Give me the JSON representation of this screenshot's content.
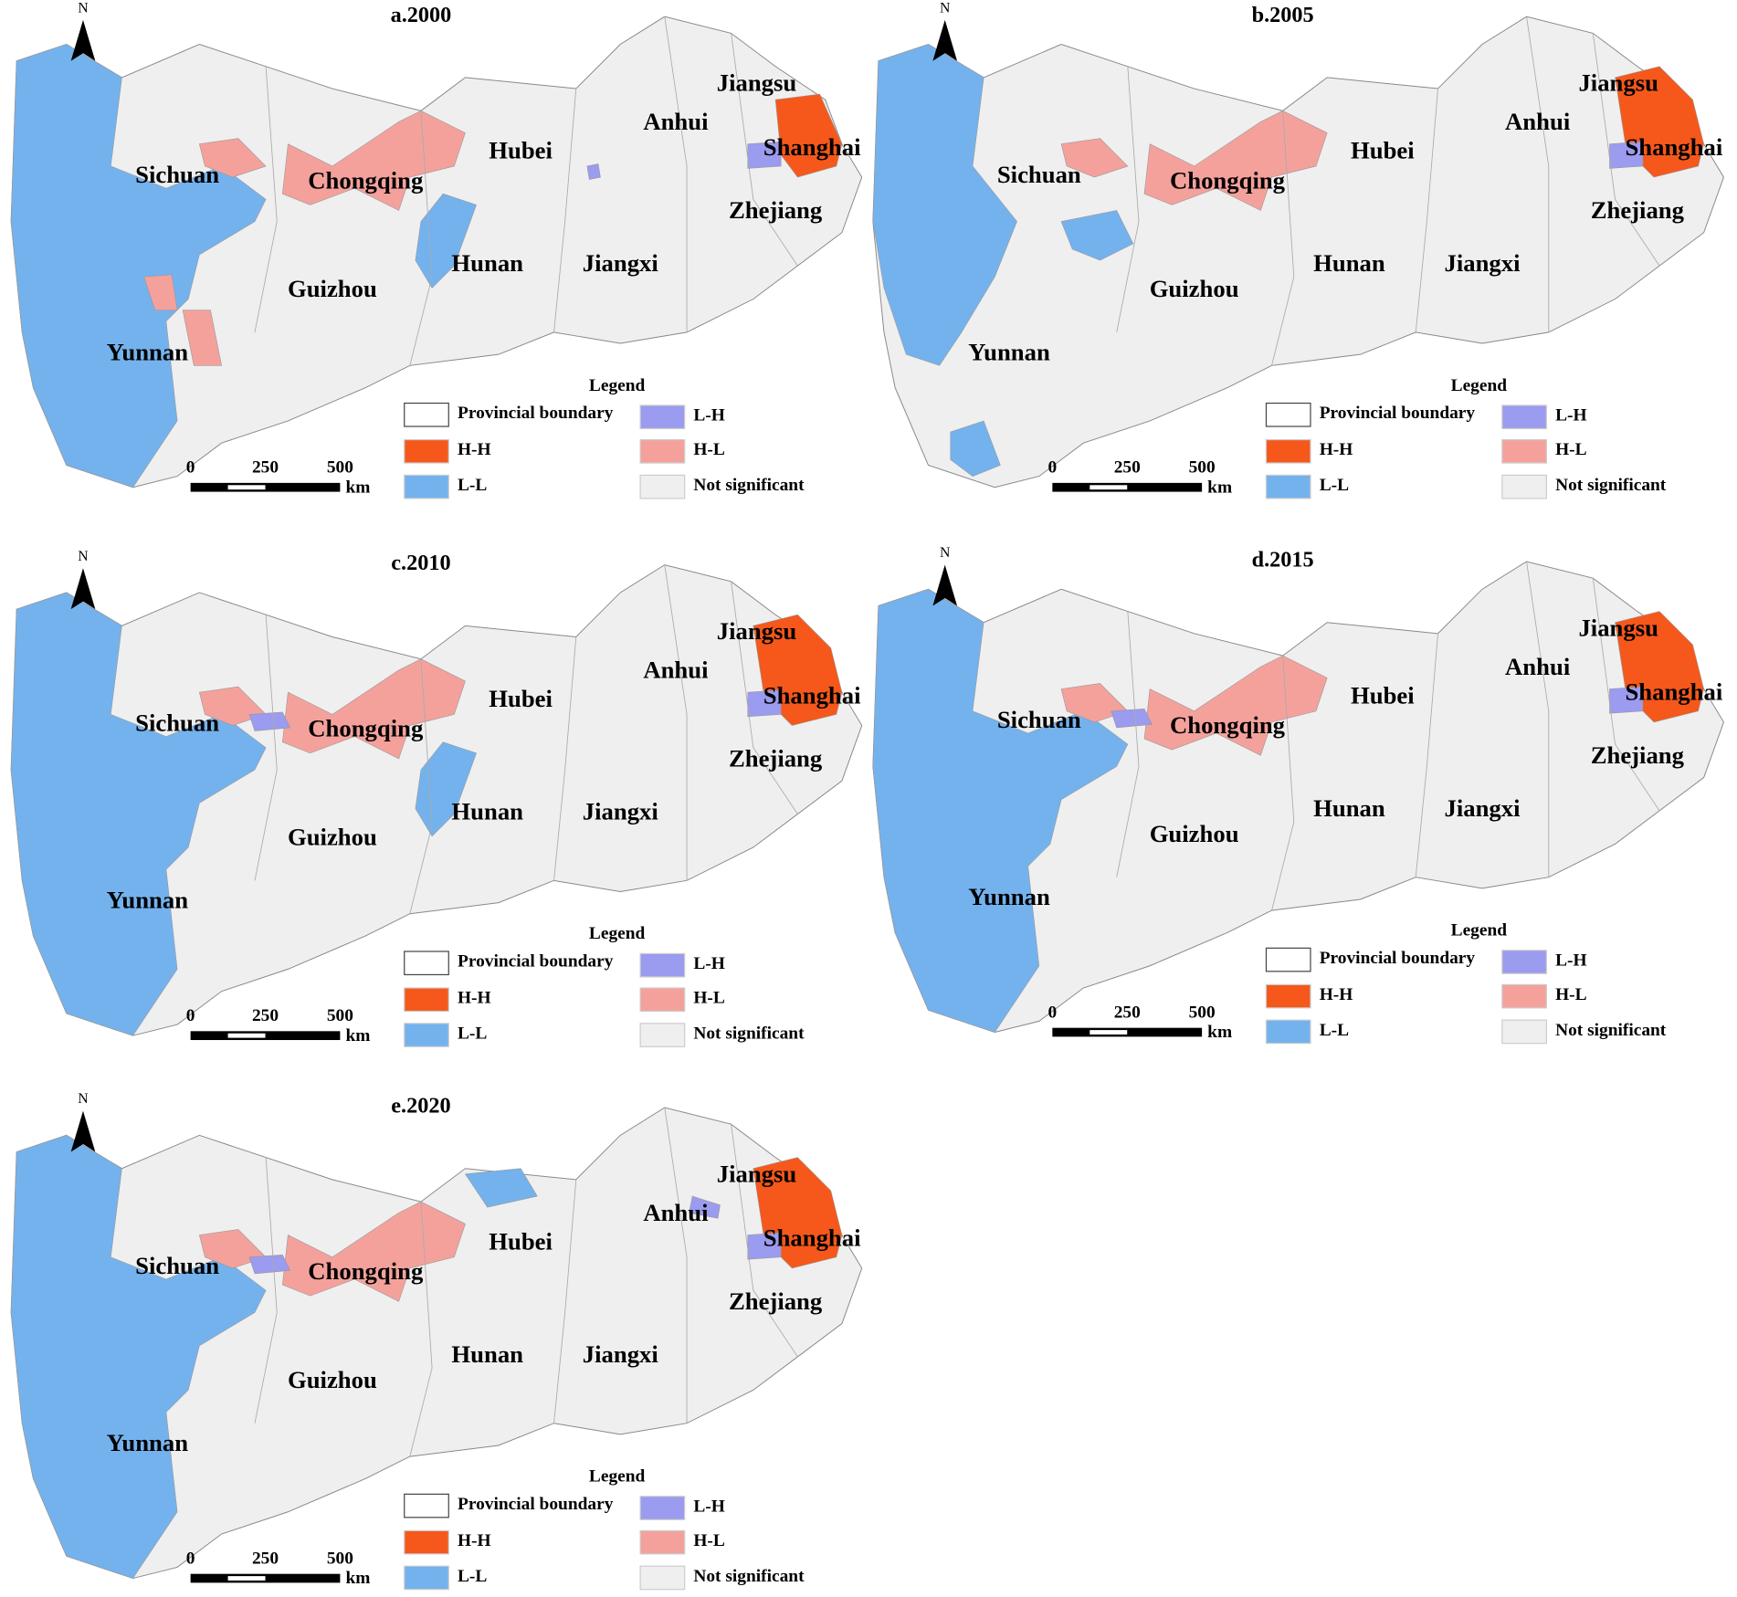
{
  "panels": [
    {
      "title": "a.2000",
      "north": "N",
      "labels": [
        "Sichuan",
        "Chongqing",
        "Hubei",
        "Anhui",
        "Jiangsu",
        "Shanghai",
        "Zhejiang",
        "Hunan",
        "Jiangxi",
        "Guizhou",
        "Yunnan"
      ],
      "legend": {
        "title": "Legend",
        "items": [
          {
            "label": "Provincial boundary",
            "color": "#ffffff"
          },
          {
            "label": "L-H",
            "color": "#9b9bef"
          },
          {
            "label": "H-H",
            "color": "#f5581a"
          },
          {
            "label": "H-L",
            "color": "#f4a19c"
          },
          {
            "label": "L-L",
            "color": "#74b2ee"
          },
          {
            "label": "Not significant",
            "color": "#efefef"
          }
        ]
      },
      "scale": {
        "ticks": [
          0,
          250,
          500
        ],
        "unit": "km"
      }
    },
    {
      "title": "b.2005",
      "north": "N",
      "labels": [
        "Sichuan",
        "Chongqing",
        "Hubei",
        "Anhui",
        "Jiangsu",
        "Shanghai",
        "Zhejiang",
        "Hunan",
        "Jiangxi",
        "Guizhou",
        "Yunnan"
      ],
      "legend": {
        "title": "Legend",
        "items": [
          {
            "label": "Provincial boundary",
            "color": "#ffffff"
          },
          {
            "label": "L-H",
            "color": "#9b9bef"
          },
          {
            "label": "H-H",
            "color": "#f5581a"
          },
          {
            "label": "H-L",
            "color": "#f4a19c"
          },
          {
            "label": "L-L",
            "color": "#74b2ee"
          },
          {
            "label": "Not significant",
            "color": "#efefef"
          }
        ]
      },
      "scale": {
        "ticks": [
          0,
          250,
          500
        ],
        "unit": "km"
      }
    },
    {
      "title": "c.2010",
      "north": "N",
      "labels": [
        "Sichuan",
        "Chongqing",
        "Hubei",
        "Anhui",
        "Jiangsu",
        "Shanghai",
        "Zhejiang",
        "Hunan",
        "Jiangxi",
        "Guizhou",
        "Yunnan"
      ],
      "legend": {
        "title": "Legend",
        "items": [
          {
            "label": "Provincial boundary",
            "color": "#ffffff"
          },
          {
            "label": "L-H",
            "color": "#9b9bef"
          },
          {
            "label": "H-H",
            "color": "#f5581a"
          },
          {
            "label": "H-L",
            "color": "#f4a19c"
          },
          {
            "label": "L-L",
            "color": "#74b2ee"
          },
          {
            "label": "Not significant",
            "color": "#efefef"
          }
        ]
      },
      "scale": {
        "ticks": [
          0,
          250,
          500
        ],
        "unit": "km"
      }
    },
    {
      "title": "d.2015",
      "north": "N",
      "labels": [
        "Sichuan",
        "Chongqing",
        "Hubei",
        "Anhui",
        "Jiangsu",
        "Shanghai",
        "Zhejiang",
        "Hunan",
        "Jiangxi",
        "Guizhou",
        "Yunnan"
      ],
      "legend": {
        "title": "Legend",
        "items": [
          {
            "label": "Provincial boundary",
            "color": "#ffffff"
          },
          {
            "label": "L-H",
            "color": "#9b9bef"
          },
          {
            "label": "H-H",
            "color": "#f5581a"
          },
          {
            "label": "H-L",
            "color": "#f4a19c"
          },
          {
            "label": "L-L",
            "color": "#74b2ee"
          },
          {
            "label": "Not significant",
            "color": "#efefef"
          }
        ]
      },
      "scale": {
        "ticks": [
          0,
          250,
          500
        ],
        "unit": "km"
      }
    },
    {
      "title": "e.2020",
      "north": "N",
      "labels": [
        "Sichuan",
        "Chongqing",
        "Hubei",
        "Anhui",
        "Jiangsu",
        "Shanghai",
        "Zhejiang",
        "Hunan",
        "Jiangxi",
        "Guizhou",
        "Yunnan"
      ],
      "legend": {
        "title": "Legend",
        "items": [
          {
            "label": "Provincial boundary",
            "color": "#ffffff"
          },
          {
            "label": "L-H",
            "color": "#9b9bef"
          },
          {
            "label": "H-H",
            "color": "#f5581a"
          },
          {
            "label": "H-L",
            "color": "#f4a19c"
          },
          {
            "label": "L-L",
            "color": "#74b2ee"
          },
          {
            "label": "Not significant",
            "color": "#efefef"
          }
        ]
      },
      "scale": {
        "ticks": [
          0,
          250,
          500
        ],
        "unit": "km"
      }
    }
  ]
}
